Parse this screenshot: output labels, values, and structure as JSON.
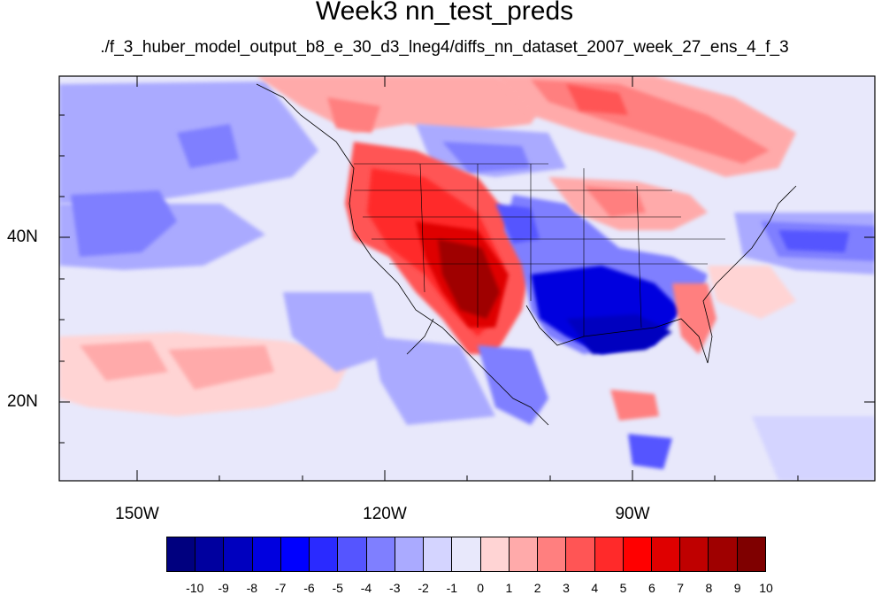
{
  "title": "Week3 nn_test_preds",
  "subtitle": "./f_3_huber_model_output_b8_e_30_d3_lneg4/diffs_nn_dataset_2007_week_27_ens_4_f_3",
  "map": {
    "lat_labels": [
      "40N",
      "20N"
    ],
    "lon_labels": [
      "150W",
      "120W",
      "90W"
    ]
  },
  "colorbar": {
    "labels": [
      "-10",
      "-9",
      "-8",
      "-7",
      "-6",
      "-5",
      "-4",
      "-3",
      "-2",
      "-1",
      "0",
      "1",
      "2",
      "3",
      "4",
      "5",
      "6",
      "7",
      "8",
      "9",
      "10"
    ],
    "colors": [
      "#00007f",
      "#00009f",
      "#0000bf",
      "#0000df",
      "#0000ff",
      "#2a2aff",
      "#5555ff",
      "#7f7fff",
      "#aaaaff",
      "#d4d4ff",
      "#e8e8fb",
      "#ffd4d4",
      "#ffaaaa",
      "#ff7f7f",
      "#ff5555",
      "#ff2a2a",
      "#ff0000",
      "#df0000",
      "#bf0000",
      "#9f0000",
      "#7f0000"
    ]
  }
}
